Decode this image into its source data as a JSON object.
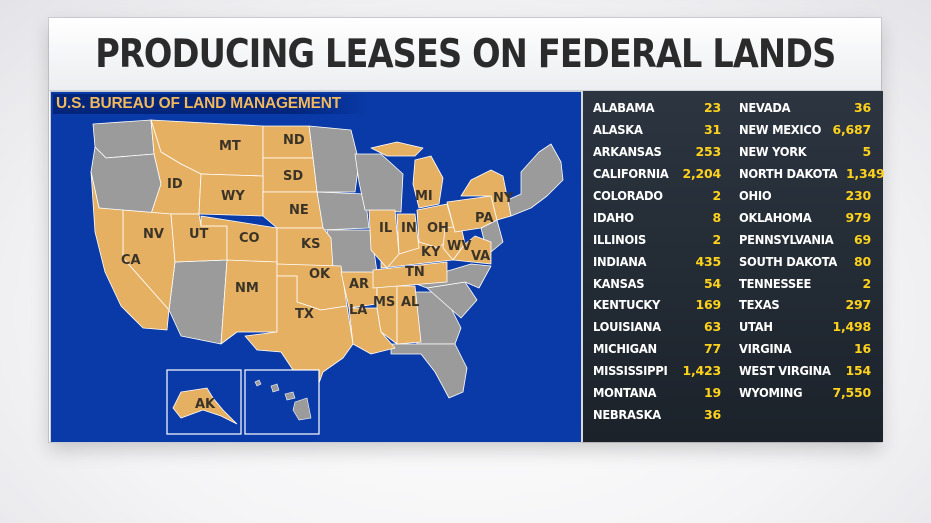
{
  "title": "PRODUCING LEASES ON FEDERAL LANDS",
  "source": "U.S. BUREAU OF LAND MANAGEMENT",
  "colors": {
    "map_background": "#0a3aa8",
    "state_with_leases": "#e6b062",
    "state_without_leases": "#9b9b9b",
    "value_text": "#ffd21c",
    "table_background": "#222a33"
  },
  "map_labels": [
    "MT",
    "ND",
    "ID",
    "SD",
    "WY",
    "NE",
    "NV",
    "UT",
    "CO",
    "KS",
    "CA",
    "OK",
    "NM",
    "AR",
    "TX",
    "LA",
    "MS",
    "AL",
    "TN",
    "KY",
    "IL",
    "IN",
    "OH",
    "WV",
    "VA",
    "PA",
    "NY",
    "MI",
    "AK"
  ],
  "leases": {
    "left": [
      {
        "state": "ALABAMA",
        "count": "23"
      },
      {
        "state": "ALASKA",
        "count": "31"
      },
      {
        "state": "ARKANSAS",
        "count": "253"
      },
      {
        "state": "CALIFORNIA",
        "count": "2,204"
      },
      {
        "state": "COLORADO",
        "count": "2"
      },
      {
        "state": "IDAHO",
        "count": "8"
      },
      {
        "state": "ILLINOIS",
        "count": "2"
      },
      {
        "state": "INDIANA",
        "count": "435"
      },
      {
        "state": "KANSAS",
        "count": "54"
      },
      {
        "state": "KENTUCKY",
        "count": "169"
      },
      {
        "state": "LOUISIANA",
        "count": "63"
      },
      {
        "state": "MICHIGAN",
        "count": "77"
      },
      {
        "state": "MISSISSIPPI",
        "count": "1,423"
      },
      {
        "state": "MONTANA",
        "count": "19"
      },
      {
        "state": "NEBRASKA",
        "count": "36"
      }
    ],
    "right": [
      {
        "state": "NEVADA",
        "count": "36"
      },
      {
        "state": "NEW MEXICO",
        "count": "6,687"
      },
      {
        "state": "NEW YORK",
        "count": "5"
      },
      {
        "state": "NORTH DAKOTA",
        "count": "1,349"
      },
      {
        "state": "OHIO",
        "count": "230"
      },
      {
        "state": "OKLAHOMA",
        "count": "979"
      },
      {
        "state": "PENNSYLVANIA",
        "count": "69"
      },
      {
        "state": "SOUTH DAKOTA",
        "count": "80"
      },
      {
        "state": "TENNESSEE",
        "count": "2"
      },
      {
        "state": "TEXAS",
        "count": "297"
      },
      {
        "state": "UTAH",
        "count": "1,498"
      },
      {
        "state": "VIRGINA",
        "count": "16"
      },
      {
        "state": "WEST VIRGINA",
        "count": "154"
      },
      {
        "state": "WYOMING",
        "count": "7,550"
      }
    ]
  }
}
